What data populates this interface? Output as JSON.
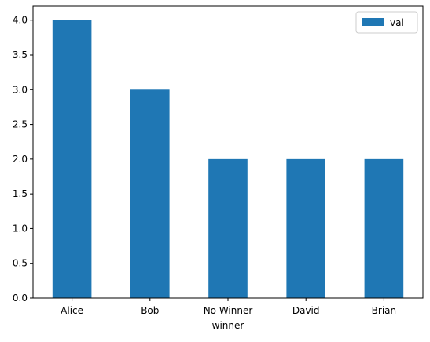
{
  "chart_data": {
    "type": "bar",
    "title": "",
    "xlabel": "winner",
    "ylabel": "",
    "categories": [
      "Alice",
      "Bob",
      "No Winner",
      "David",
      "Brian"
    ],
    "series": [
      {
        "name": "val",
        "values": [
          4,
          3,
          2,
          2,
          2
        ]
      }
    ],
    "ylim": [
      0,
      4.2
    ],
    "yticks": [
      "0.0",
      "0.5",
      "1.0",
      "1.5",
      "2.0",
      "2.5",
      "3.0",
      "3.5",
      "4.0"
    ],
    "grid": false,
    "legend_position": "top-right",
    "bar_color": "#1f77b4"
  }
}
